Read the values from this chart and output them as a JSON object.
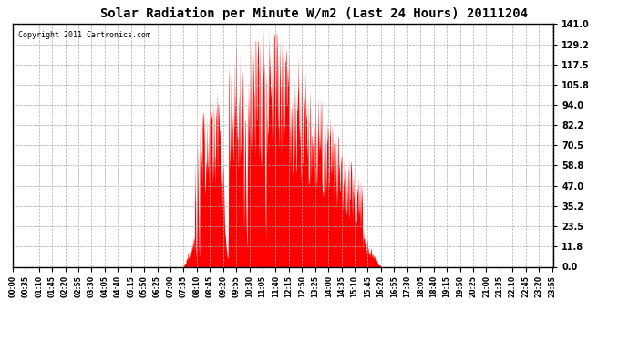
{
  "title": "Solar Radiation per Minute W/m2 (Last 24 Hours) 20111204",
  "copyright": "Copyright 2011 Cartronics.com",
  "bar_color": "#FF0000",
  "background_color": "#FFFFFF",
  "grid_color": "#AAAAAA",
  "y_ticks": [
    0.0,
    11.8,
    23.5,
    35.2,
    47.0,
    58.8,
    70.5,
    82.2,
    94.0,
    105.8,
    117.5,
    129.2,
    141.0
  ],
  "ylim": [
    0,
    141.0
  ],
  "hline_y": 0.0,
  "hline_color": "#FF0000",
  "x_tick_positions": [
    0,
    35,
    70,
    105,
    140,
    175,
    210,
    245,
    280,
    315,
    350,
    385,
    420,
    455,
    490,
    525,
    560,
    595,
    630,
    665,
    700,
    735,
    770,
    805,
    840,
    875,
    910,
    945,
    980,
    1015,
    1050,
    1085,
    1120,
    1155,
    1190,
    1225,
    1260,
    1295,
    1330,
    1365,
    1400,
    1435
  ],
  "time_labels": [
    "00:00",
    "00:35",
    "01:10",
    "01:45",
    "02:20",
    "02:55",
    "03:30",
    "04:05",
    "04:40",
    "05:15",
    "05:50",
    "06:25",
    "07:00",
    "07:35",
    "08:10",
    "08:45",
    "09:20",
    "09:55",
    "10:30",
    "11:05",
    "11:40",
    "12:15",
    "12:50",
    "13:25",
    "14:00",
    "14:35",
    "15:10",
    "15:45",
    "16:20",
    "16:55",
    "17:30",
    "18:05",
    "18:40",
    "19:15",
    "19:50",
    "20:25",
    "21:00",
    "21:35",
    "22:10",
    "22:45",
    "23:20",
    "23:55"
  ],
  "solar_start_minute": 455,
  "solar_end_minute": 980,
  "solar_peak_minute": 670,
  "solar_peak_value": 141.0,
  "solar_secondary_peak_minute": 620,
  "solar_secondary_peak_value": 85.0
}
